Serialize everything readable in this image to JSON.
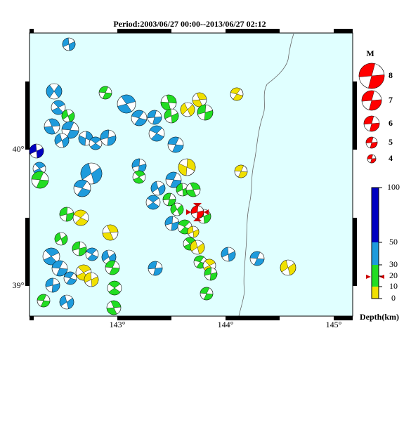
{
  "title": "Period:2003/06/27 00:00--2013/06/27 02:12",
  "axes": {
    "lat_labels": [
      "40°",
      "39°"
    ],
    "lon_labels": [
      "143°",
      "144°",
      "145°"
    ]
  },
  "magnitude_legend": {
    "title": "M",
    "labels": [
      "8",
      "7",
      "6",
      "5",
      "4"
    ]
  },
  "depth_scale": {
    "ticks": [
      "100",
      "50",
      "30",
      "20",
      "10",
      "0"
    ],
    "label": "Depth(km)"
  }
}
